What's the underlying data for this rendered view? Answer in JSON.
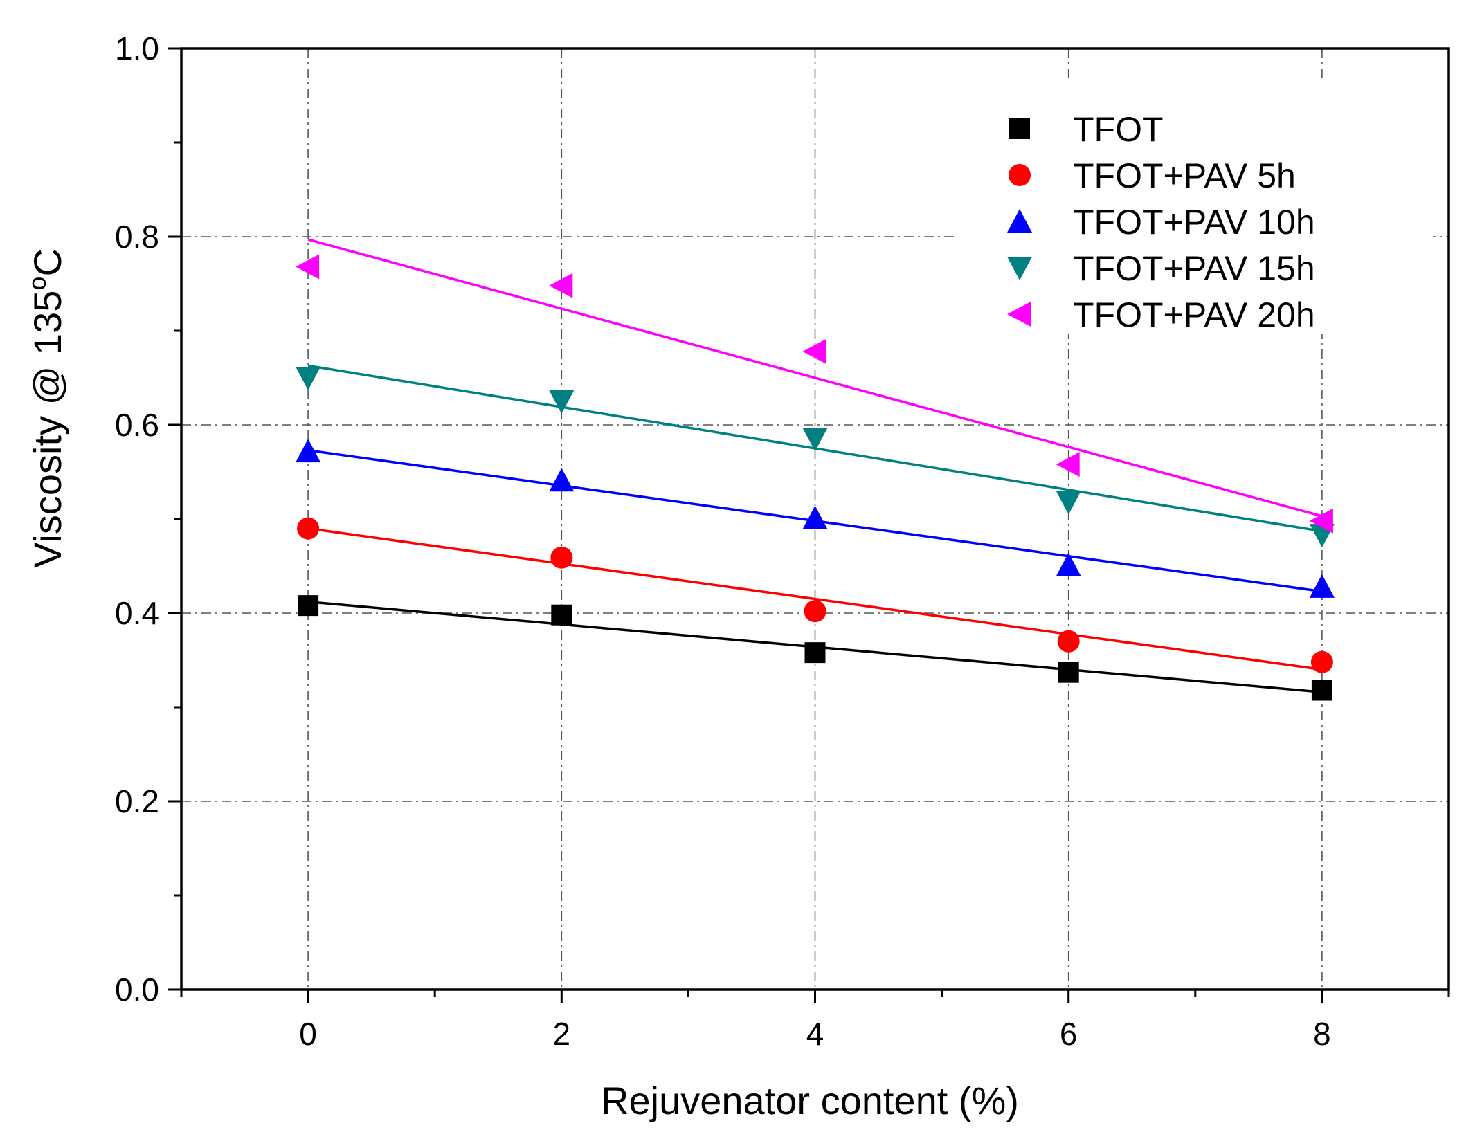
{
  "chart_data": {
    "type": "scatter",
    "title": "",
    "xlabel": "Rejuvenator content (%)",
    "ylabel_prefix": "Viscosity @ 135",
    "ylabel_sup": "o",
    "ylabel_suffix": "C",
    "xlim": [
      -1,
      9
    ],
    "ylim": [
      0.0,
      1.0
    ],
    "xticks": [
      0,
      2,
      4,
      6,
      8
    ],
    "xtick_labels": [
      "0",
      "2",
      "4",
      "6",
      "8"
    ],
    "yticks": [
      0.0,
      0.2,
      0.4,
      0.6,
      0.8,
      1.0
    ],
    "ytick_labels": [
      "0.0",
      "0.2",
      "0.4",
      "0.6",
      "0.8",
      "1.0"
    ],
    "grid": true,
    "legend_position": "top-right",
    "x": [
      0,
      2,
      4,
      6,
      8
    ],
    "series": [
      {
        "name": "TFOT",
        "marker": "square",
        "color": "#000000",
        "values": [
          0.408,
          0.398,
          0.358,
          0.337,
          0.318
        ],
        "fit": [
          0.412,
          0.316
        ]
      },
      {
        "name": "TFOT+PAV 5h",
        "marker": "circle",
        "color": "#ff0000",
        "values": [
          0.49,
          0.459,
          0.402,
          0.37,
          0.348
        ],
        "fit": [
          0.49,
          0.34
        ]
      },
      {
        "name": "TFOT+PAV 10h",
        "marker": "triangle-up",
        "color": "#0000ff",
        "values": [
          0.572,
          0.541,
          0.501,
          0.451,
          0.428
        ],
        "fit": [
          0.573,
          0.423
        ]
      },
      {
        "name": "TFOT+PAV 15h",
        "marker": "triangle-down",
        "color": "#008080",
        "values": [
          0.65,
          0.625,
          0.585,
          0.518,
          0.483
        ],
        "fit": [
          0.663,
          0.487
        ]
      },
      {
        "name": "TFOT+PAV 20h",
        "marker": "triangle-left",
        "color": "#ff00ff",
        "values": [
          0.768,
          0.748,
          0.678,
          0.558,
          0.498
        ],
        "fit": [
          0.797,
          0.503
        ]
      }
    ]
  }
}
